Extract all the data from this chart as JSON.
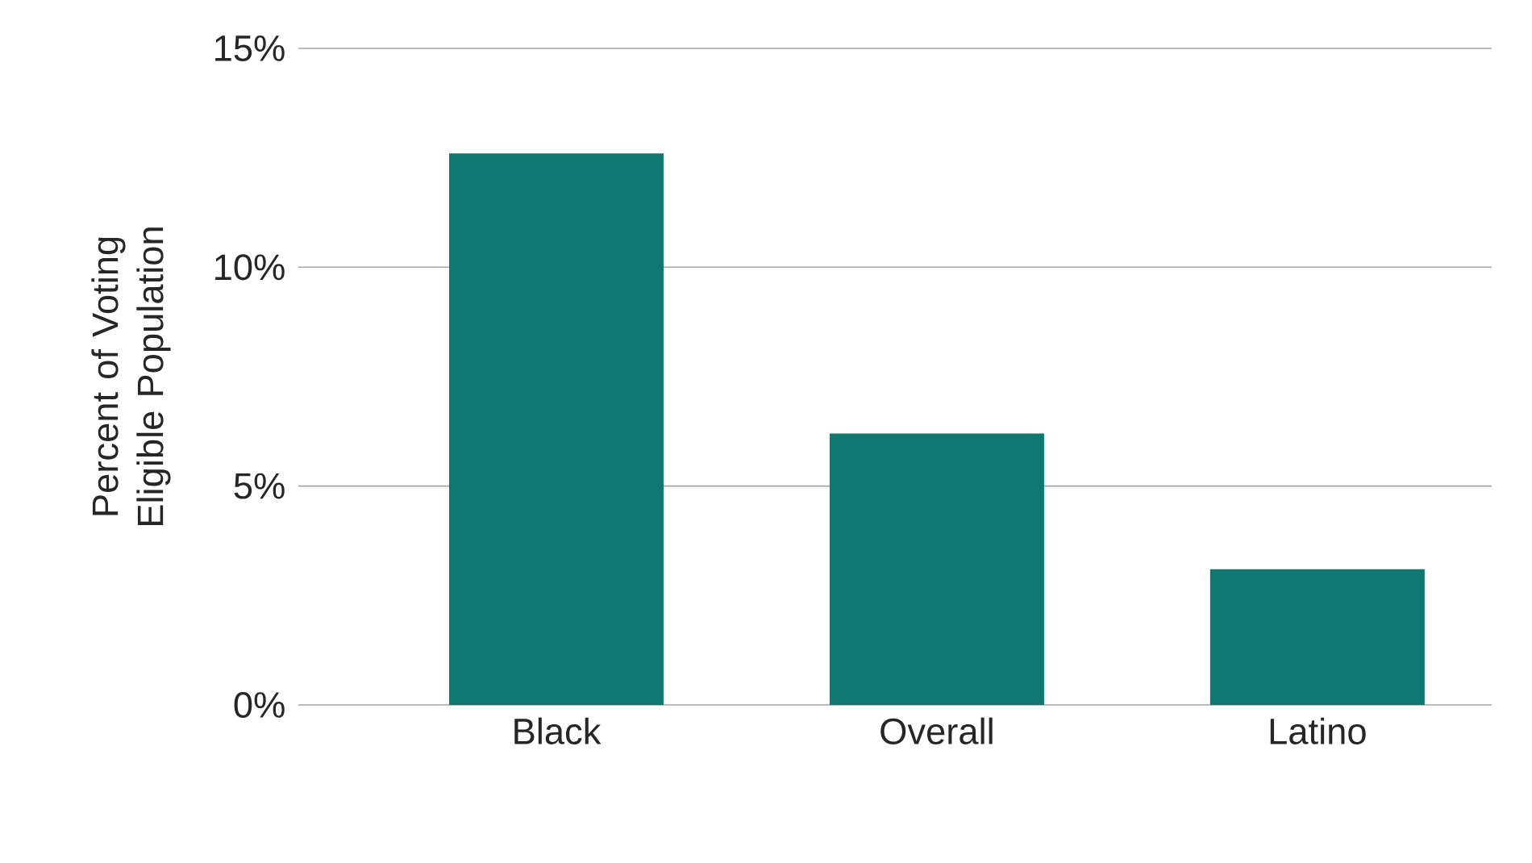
{
  "chart_data": {
    "type": "bar",
    "ylabel": "Percent of Voting Eligible Population",
    "categories": [
      "Black",
      "Overall",
      "Latino"
    ],
    "values": [
      12.6,
      6.2,
      3.1
    ],
    "color": "#0e7770",
    "ylim": [
      0,
      15
    ],
    "yticks": [
      {
        "value": 0,
        "label": "0%"
      },
      {
        "value": 5,
        "label": "5%"
      },
      {
        "value": 10,
        "label": "10%"
      },
      {
        "value": 15,
        "label": "15%"
      }
    ],
    "grid": "y"
  }
}
